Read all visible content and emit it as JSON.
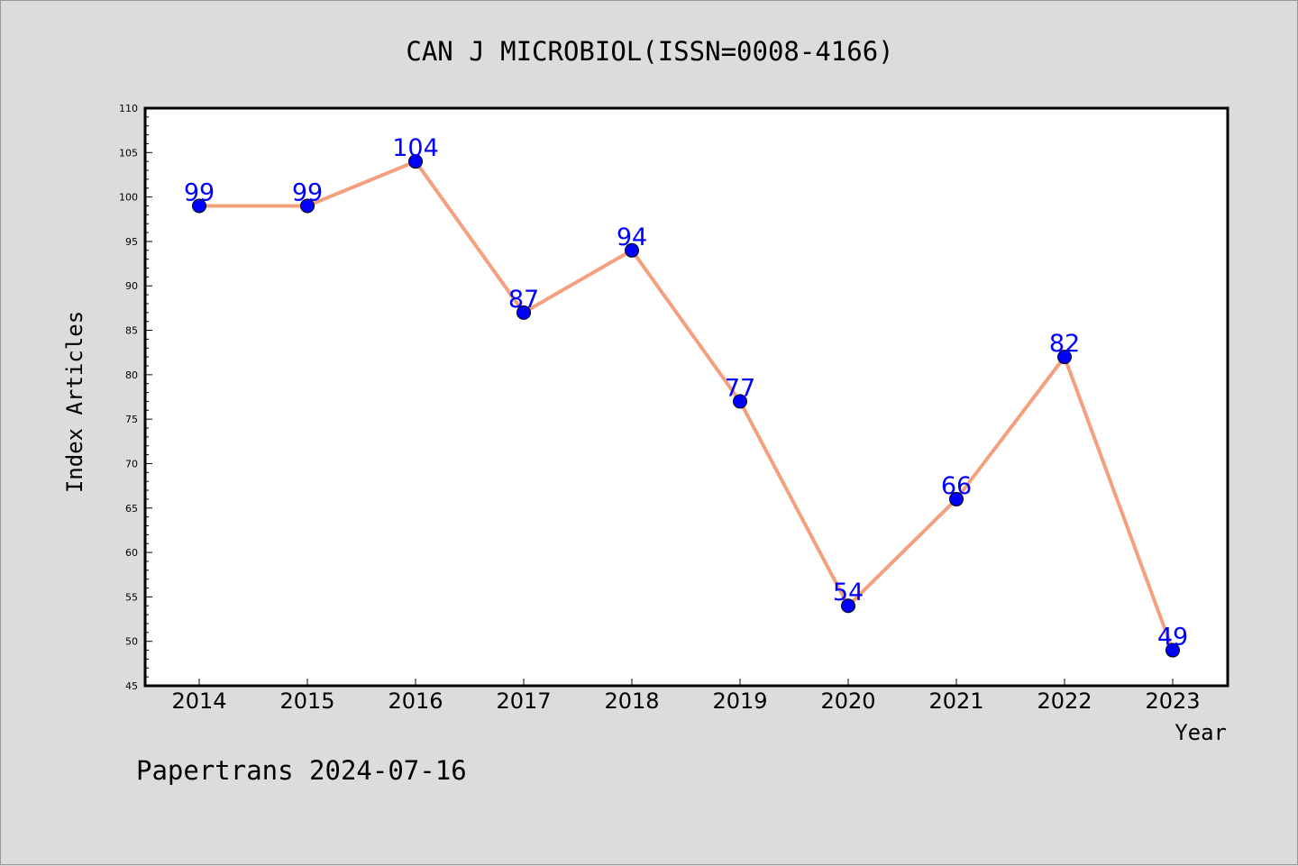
{
  "chart_data": {
    "type": "line",
    "title": "CAN J MICROBIOL(ISSN=0008-4166)",
    "xlabel": "Year",
    "ylabel": "Index Articles",
    "categories": [
      "2014",
      "2015",
      "2016",
      "2017",
      "2018",
      "2019",
      "2020",
      "2021",
      "2022",
      "2023"
    ],
    "series": [
      {
        "values": [
          99,
          99,
          104,
          87,
          94,
          77,
          54,
          66,
          82,
          49
        ]
      }
    ],
    "ylim": [
      45,
      110
    ],
    "yticks": [
      45,
      50,
      55,
      60,
      65,
      70,
      75,
      80,
      85,
      90,
      95,
      100,
      105,
      110
    ],
    "grid": false,
    "line_color": "#f4a07e",
    "marker_color": "#0000ff",
    "label_color": "#0000ff"
  },
  "footer": {
    "text": "Papertrans 2024-07-16"
  }
}
